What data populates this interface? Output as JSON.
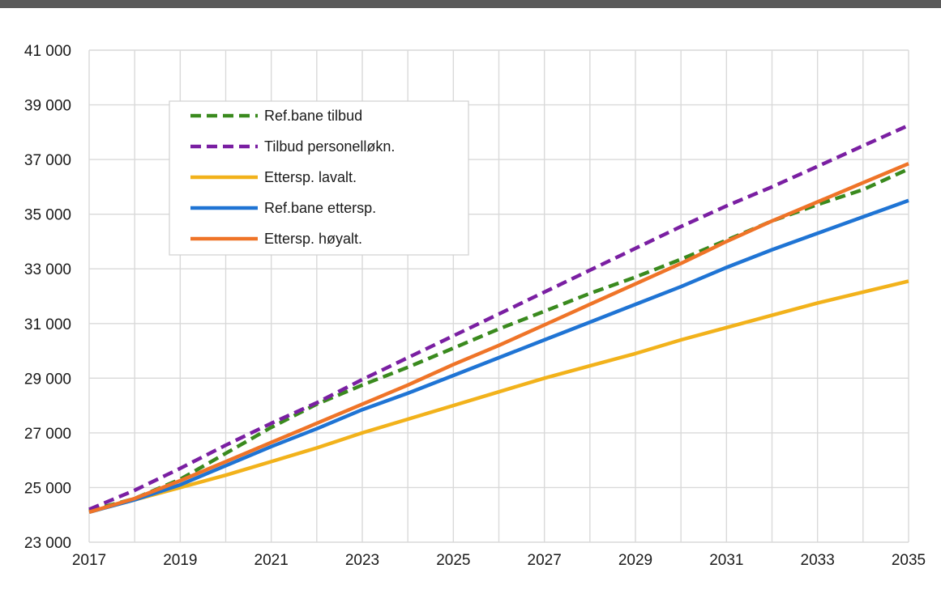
{
  "chart_data": {
    "type": "line",
    "title": "",
    "xlabel": "",
    "ylabel": "",
    "xlim": [
      2017,
      2035
    ],
    "ylim": [
      23000,
      41000
    ],
    "x_ticks": [
      2017,
      2019,
      2021,
      2023,
      2025,
      2027,
      2029,
      2031,
      2033,
      2035
    ],
    "x_tick_labels": [
      "2017",
      "2019",
      "2021",
      "2023",
      "2025",
      "2027",
      "2029",
      "2031",
      "2033",
      "2035"
    ],
    "y_ticks": [
      23000,
      25000,
      27000,
      29000,
      31000,
      33000,
      35000,
      37000,
      39000,
      41000
    ],
    "y_tick_labels": [
      "23 000",
      "25 000",
      "27 000",
      "29 000",
      "31 000",
      "33 000",
      "35 000",
      "37 000",
      "39 000",
      "41 000"
    ],
    "grid": true,
    "legend_position": "upper-left",
    "x": [
      2017,
      2018,
      2019,
      2020,
      2021,
      2022,
      2023,
      2024,
      2025,
      2026,
      2027,
      2028,
      2029,
      2030,
      2031,
      2032,
      2033,
      2034,
      2035
    ],
    "series": [
      {
        "name": "Ref.bane tilbud",
        "color": "#3a8a1e",
        "dash": true,
        "values": [
          24150,
          24600,
          25300,
          26250,
          27200,
          28050,
          28750,
          29400,
          30100,
          30800,
          31450,
          32100,
          32700,
          33350,
          34050,
          34750,
          35350,
          35900,
          36650
        ]
      },
      {
        "name": "Tilbud personelløkn.",
        "color": "#7a1fa2",
        "dash": true,
        "values": [
          24200,
          24900,
          25700,
          26550,
          27350,
          28100,
          28950,
          29750,
          30550,
          31350,
          32150,
          32950,
          33750,
          34550,
          35300,
          36000,
          36750,
          37500,
          38250
        ]
      },
      {
        "name": "Ettersp. lavalt.",
        "color": "#f2b21b",
        "dash": false,
        "values": [
          24100,
          24550,
          25000,
          25450,
          25950,
          26450,
          27000,
          27500,
          28000,
          28500,
          29000,
          29450,
          29900,
          30400,
          30850,
          31300,
          31750,
          32150,
          32550
        ]
      },
      {
        "name": "Ref.bane ettersp.",
        "color": "#1f74d4",
        "dash": false,
        "values": [
          24100,
          24550,
          25100,
          25800,
          26500,
          27150,
          27850,
          28450,
          29100,
          29750,
          30400,
          31050,
          31700,
          32350,
          33050,
          33700,
          34300,
          34900,
          35500
        ]
      },
      {
        "name": "Ettersp. høyalt.",
        "color": "#ef7428",
        "dash": false,
        "values": [
          24100,
          24600,
          25250,
          25950,
          26650,
          27350,
          28050,
          28750,
          29500,
          30200,
          30950,
          31700,
          32450,
          33200,
          34000,
          34750,
          35450,
          36150,
          36850
        ]
      }
    ]
  }
}
